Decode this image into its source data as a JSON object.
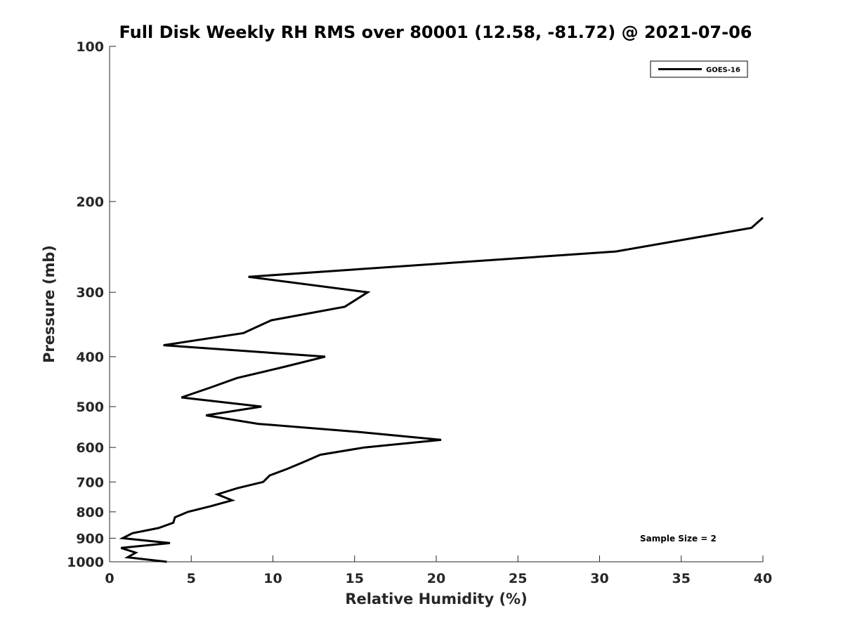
{
  "chart_data": {
    "type": "line",
    "title": "Full Disk Weekly RH RMS over 80001 (12.58, -81.72) @ 2021-07-06",
    "xlabel": "Relative Humidity (%)",
    "ylabel": "Pressure (mb)",
    "xlim": [
      0,
      40
    ],
    "ylim": [
      100,
      1000
    ],
    "yscale": "log",
    "yreversed": true,
    "grid": false,
    "legend_position": "top-right",
    "x_ticks": [
      0,
      5,
      10,
      15,
      20,
      25,
      30,
      35,
      40
    ],
    "y_ticks": [
      100,
      200,
      300,
      400,
      500,
      600,
      700,
      800,
      900,
      1000
    ],
    "series": [
      {
        "name": "GOES-16",
        "color": "#000000",
        "points": [
          [
            40.0,
            215
          ],
          [
            39.3,
            225
          ],
          [
            31.0,
            250
          ],
          [
            8.5,
            280
          ],
          [
            15.8,
            300
          ],
          [
            14.4,
            320
          ],
          [
            9.9,
            340
          ],
          [
            8.2,
            360
          ],
          [
            3.3,
            380
          ],
          [
            13.2,
            400
          ],
          [
            10.5,
            420
          ],
          [
            7.8,
            440
          ],
          [
            6.1,
            460
          ],
          [
            4.4,
            480
          ],
          [
            9.3,
            500
          ],
          [
            5.9,
            520
          ],
          [
            9.1,
            540
          ],
          [
            15.3,
            560
          ],
          [
            20.3,
            580
          ],
          [
            15.6,
            600
          ],
          [
            12.9,
            620
          ],
          [
            11.9,
            640
          ],
          [
            10.9,
            660
          ],
          [
            9.8,
            680
          ],
          [
            9.4,
            700
          ],
          [
            7.8,
            720
          ],
          [
            6.6,
            740
          ],
          [
            7.5,
            760
          ],
          [
            6.2,
            780
          ],
          [
            4.8,
            800
          ],
          [
            4.0,
            820
          ],
          [
            3.9,
            840
          ],
          [
            3.0,
            860
          ],
          [
            1.4,
            880
          ],
          [
            0.8,
            900
          ],
          [
            3.7,
            920
          ],
          [
            0.7,
            940
          ],
          [
            1.6,
            960
          ],
          [
            1.1,
            980
          ],
          [
            3.5,
            1000
          ]
        ]
      }
    ],
    "annotation": "Sample Size = 2"
  }
}
